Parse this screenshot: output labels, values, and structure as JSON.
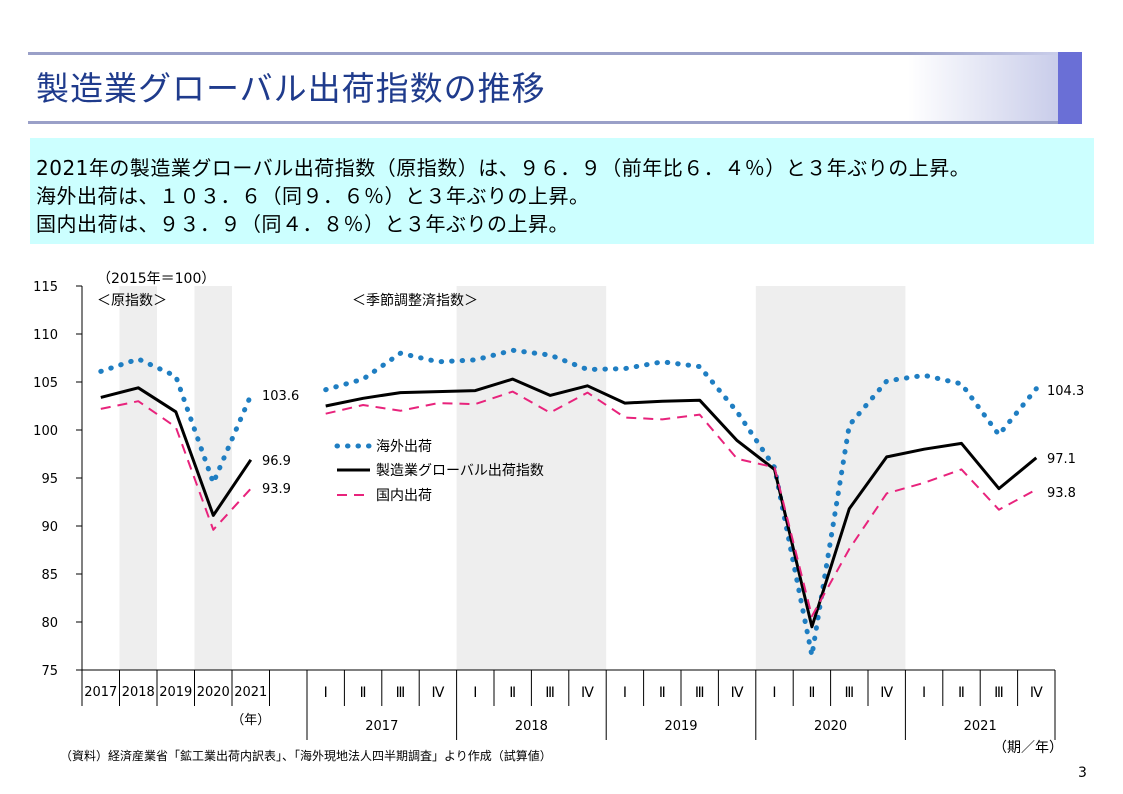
{
  "title": "製造業グローバル出荷指数の推移",
  "summary": [
    "2021年の製造業グローバル出荷指数（原指数）は、９６．９（前年比６．４％）と３年ぶりの上昇。",
    "海外出荷は、１０３．６（同９．６％）と３年ぶりの上昇。",
    "国内出荷は、９３．９（同４．８％）と３年ぶりの上昇。"
  ],
  "footnote": "（資料）経済産業省「鉱工業出荷内訳表」、「海外現地法人四半期調査」より作成（試算値）",
  "page_number": "3",
  "chart_data": {
    "type": "line",
    "unit_label": "（2015年＝100）",
    "left_panel_label": "＜原指数＞",
    "right_panel_label": "＜季節調整済指数＞",
    "ylim": [
      75,
      115
    ],
    "yticks": [
      75,
      80,
      85,
      90,
      95,
      100,
      105,
      110,
      115
    ],
    "annual": {
      "categories": [
        "2017",
        "2018",
        "2019",
        "2020",
        "2021"
      ],
      "axis_unit": "（年）",
      "shaded": [
        "2018",
        "2020"
      ],
      "series": [
        {
          "name": "海外出荷",
          "values": [
            106.1,
            107.4,
            105.6,
            94.5,
            103.6
          ]
        },
        {
          "name": "製造業グローバル出荷指数",
          "values": [
            103.4,
            104.4,
            101.9,
            91.1,
            96.9
          ]
        },
        {
          "name": "国内出荷",
          "values": [
            102.2,
            103.0,
            100.3,
            89.6,
            93.9
          ]
        }
      ],
      "end_labels": [
        "103.6",
        "96.9",
        "93.9"
      ]
    },
    "quarterly": {
      "quarters": [
        "Ⅰ",
        "Ⅱ",
        "Ⅲ",
        "Ⅳ"
      ],
      "years": [
        "2017",
        "2018",
        "2019",
        "2020",
        "2021"
      ],
      "axis_unit": "（期／年）",
      "shaded": [
        "2018",
        "2020"
      ],
      "series": [
        {
          "name": "海外出荷",
          "values": [
            104.2,
            105.3,
            108.0,
            107.1,
            107.3,
            108.3,
            107.8,
            106.3,
            106.4,
            107.1,
            106.6,
            101.9,
            96.1,
            76.5,
            100.5,
            105.1,
            105.7,
            104.8,
            99.5,
            104.3
          ]
        },
        {
          "name": "製造業グローバル出荷指数",
          "values": [
            102.5,
            103.3,
            103.9,
            104.0,
            104.1,
            105.3,
            103.6,
            104.6,
            102.8,
            103.0,
            103.1,
            98.9,
            95.9,
            79.5,
            91.8,
            97.2,
            98.0,
            98.6,
            93.9,
            97.1
          ]
        },
        {
          "name": "国内出荷",
          "values": [
            101.7,
            102.6,
            102.0,
            102.8,
            102.7,
            104.0,
            101.8,
            103.9,
            101.3,
            101.1,
            101.6,
            97.0,
            96.1,
            80.6,
            87.6,
            93.4,
            94.5,
            95.9,
            91.7,
            93.8
          ]
        }
      ],
      "end_labels": [
        "104.3",
        "97.1",
        "93.8"
      ]
    },
    "legend": [
      "海外出荷",
      "製造業グローバル出荷指数",
      "国内出荷"
    ],
    "colors": {
      "overseas": "#1f7ec2",
      "global": "#000000",
      "domestic": "#e8237c",
      "shade": "#eeeeee"
    }
  }
}
